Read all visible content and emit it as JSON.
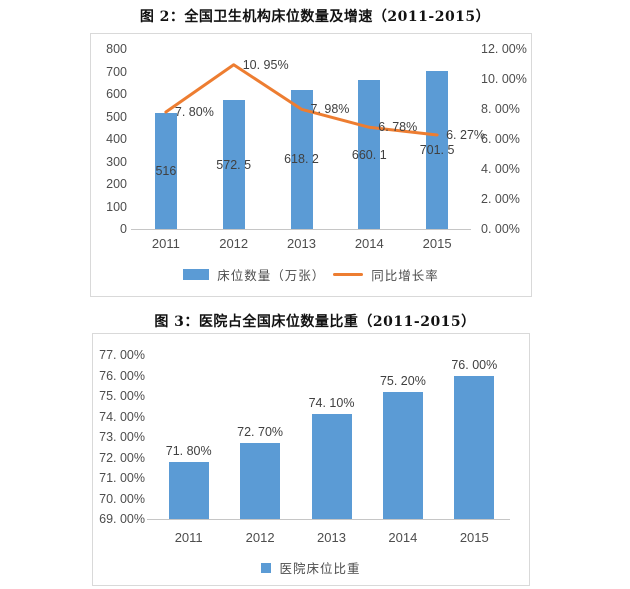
{
  "colors": {
    "bar_blue": "#5b9bd5",
    "line_orange": "#ed7d31",
    "axis_text": "#4d4d4d",
    "label_text": "#404040",
    "box_border": "#d9d9d9",
    "axis_line": "#c6c6c6"
  },
  "chart_data": [
    {
      "type": "bar",
      "title": "图 2：全国卫生机构床位数量及增速（2011-2015）",
      "categories": [
        "2011",
        "2012",
        "2013",
        "2014",
        "2015"
      ],
      "series": [
        {
          "name": "床位数量（万张）",
          "kind": "bar",
          "axis": "left",
          "color": "#5b9bd5",
          "values": [
            516,
            572.5,
            618.2,
            660.1,
            701.5
          ],
          "labels": [
            "516",
            "572. 5",
            "618. 2",
            "660. 1",
            "701. 5"
          ],
          "label_position": "center"
        },
        {
          "name": "同比增长率",
          "kind": "line",
          "axis": "right",
          "color": "#ed7d31",
          "values": [
            7.8,
            10.95,
            7.98,
            6.78,
            6.27
          ],
          "labels": [
            "7. 80%",
            "10. 95%",
            "7. 98%",
            "6. 78%",
            "6. 27%"
          ],
          "label_position": "right-of-point"
        }
      ],
      "left_axis": {
        "min": 0,
        "max": 800,
        "ticks": [
          "800",
          "700",
          "600",
          "500",
          "400",
          "300",
          "200",
          "100",
          "0"
        ]
      },
      "right_axis": {
        "min": 0,
        "max": 12,
        "ticks": [
          "12. 00%",
          "10. 00%",
          "8. 00%",
          "6. 00%",
          "4. 00%",
          "2. 00%",
          "0. 00%"
        ]
      },
      "grid": false,
      "legend_position": "bottom"
    },
    {
      "type": "bar",
      "title": "图 3：医院占全国床位数量比重（2011-2015）",
      "categories": [
        "2011",
        "2012",
        "2013",
        "2014",
        "2015"
      ],
      "series": [
        {
          "name": "医院床位比重",
          "kind": "bar",
          "axis": "left",
          "color": "#5b9bd5",
          "values": [
            71.8,
            72.7,
            74.1,
            75.2,
            76.0
          ],
          "labels": [
            "71. 80%",
            "72. 70%",
            "74. 10%",
            "75. 20%",
            "76. 00%"
          ],
          "label_position": "above"
        }
      ],
      "left_axis": {
        "min": 69,
        "max": 77,
        "ticks": [
          "77. 00%",
          "76. 00%",
          "75. 00%",
          "74. 00%",
          "73. 00%",
          "72. 00%",
          "71. 00%",
          "70. 00%",
          "69. 00%"
        ]
      },
      "grid": false,
      "legend_position": "bottom"
    }
  ]
}
